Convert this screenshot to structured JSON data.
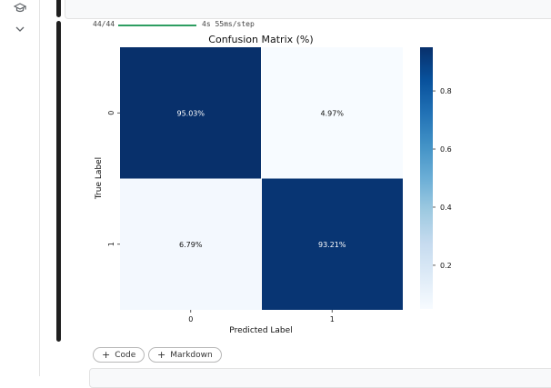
{
  "sidebar": {
    "icons": [
      "graduation-cap-icon",
      "chevron-down-icon"
    ]
  },
  "output": {
    "progress": {
      "steps_done_label": "44/44",
      "time_label": "4s 55ms/step",
      "fraction": 1.0,
      "color": "#2e9e61"
    }
  },
  "chart_data": {
    "type": "heatmap",
    "title": "Confusion Matrix (%)",
    "xlabel": "Predicted Label",
    "ylabel": "True Label",
    "x_categories": [
      "0",
      "1"
    ],
    "y_categories": [
      "0",
      "1"
    ],
    "values": [
      [
        0.9503,
        0.0497
      ],
      [
        0.0679,
        0.9321
      ]
    ],
    "cell_labels": [
      [
        "95.03%",
        "4.97%"
      ],
      [
        "6.79%",
        "93.21%"
      ]
    ],
    "colormap": "Blues",
    "colorbar": {
      "range": [
        0.0497,
        0.9503
      ],
      "ticks": [
        0.2,
        0.4,
        0.6,
        0.8
      ],
      "tick_labels": [
        "0.2",
        "0.4",
        "0.6",
        "0.8"
      ]
    }
  },
  "toolbar": {
    "add_code_label": "Code",
    "add_markdown_label": "Markdown",
    "plus_glyph": "+"
  }
}
